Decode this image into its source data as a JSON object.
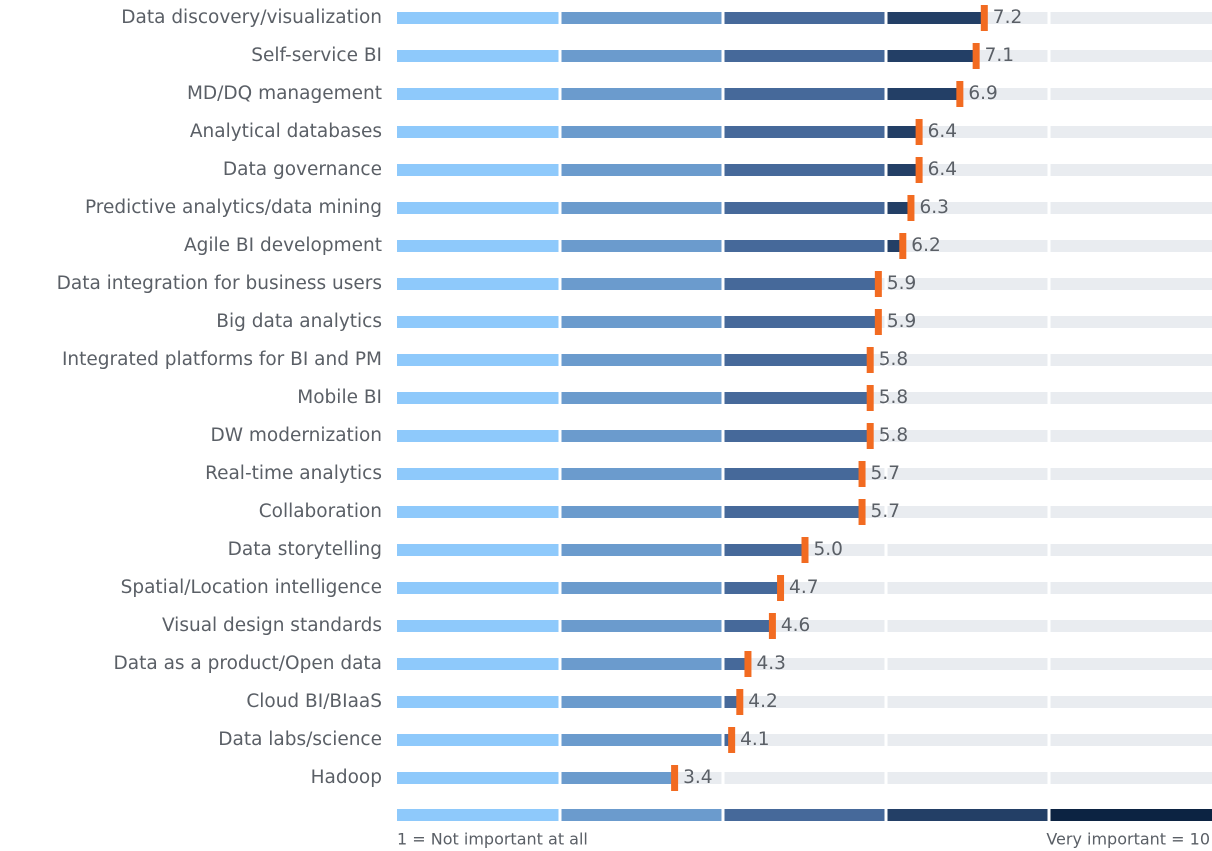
{
  "chart_data": {
    "type": "bar",
    "orientation": "horizontal",
    "categories": [
      "Data discovery/visualization",
      "Self-service BI",
      "MD/DQ management",
      "Analytical databases",
      "Data governance",
      "Predictive analytics/data mining",
      "Agile BI development",
      "Data integration for business users",
      "Big data analytics",
      "Integrated platforms for BI and PM",
      "Mobile BI",
      "DW modernization",
      "Real-time analytics",
      "Collaboration",
      "Data storytelling",
      "Spatial/Location intelligence",
      "Visual design standards",
      "Data as a product/Open data",
      "Cloud BI/BIaaS",
      "Data labs/science",
      "Hadoop"
    ],
    "values": [
      7.2,
      7.1,
      6.9,
      6.4,
      6.4,
      6.3,
      6.2,
      5.9,
      5.9,
      5.8,
      5.8,
      5.8,
      5.7,
      5.7,
      5.0,
      4.7,
      4.6,
      4.3,
      4.2,
      4.1,
      3.4
    ],
    "value_labels": [
      "7.2",
      "7.1",
      "6.9",
      "6.4",
      "6.4",
      "6.3",
      "6.2",
      "5.9",
      "5.9",
      "5.8",
      "5.8",
      "5.8",
      "5.7",
      "5.7",
      "5.0",
      "4.7",
      "4.6",
      "4.3",
      "4.2",
      "4.1",
      "3.4"
    ],
    "xlim": [
      0,
      10
    ],
    "scale_colors": [
      "#8ec9fb",
      "#6b9bcd",
      "#46699a",
      "#233f66",
      "#0c2342"
    ],
    "track_color": "#e9ecf0",
    "marker_color": "#f26b21",
    "scale_low_label": "1 = Not important at all",
    "scale_high_label": "Very important = 10"
  }
}
